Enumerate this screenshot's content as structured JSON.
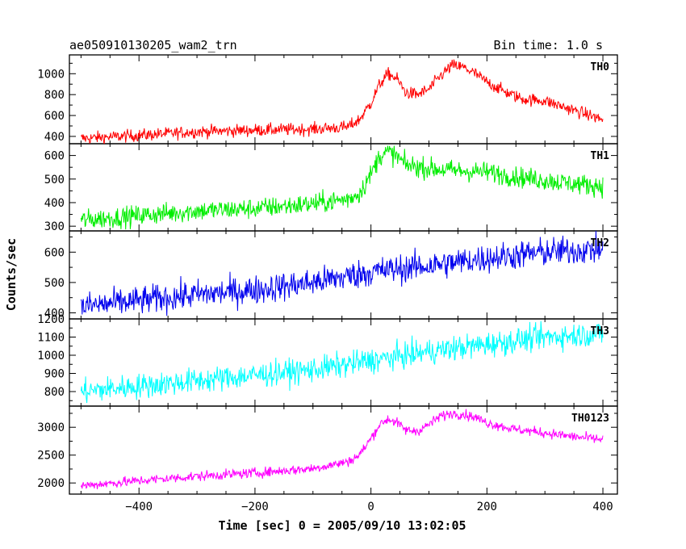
{
  "header": {
    "title": "ae050910130205_wam2_trn",
    "bin_time": "Bin time: 1.0 s"
  },
  "axes": {
    "ylabel": "Counts/sec",
    "xlabel": "Time [sec] 0 = 2005/09/10 13:02:05"
  },
  "chart_data": {
    "type": "line",
    "xlim": [
      -520,
      425
    ],
    "x_ticks": [
      -400,
      -200,
      0,
      200,
      400
    ],
    "x_tick_labels": [
      "−400",
      "−200",
      "0",
      "200",
      "400"
    ],
    "time_range": [
      -500,
      400
    ],
    "panels": [
      {
        "label": "TH0",
        "color": "#ff0000",
        "ylim": [
          330,
          1180
        ],
        "y_ticks": [
          400,
          600,
          800,
          1000
        ],
        "y_tick_labels": [
          "400",
          "600",
          "800",
          "1000"
        ],
        "noise": 30,
        "profile": [
          [
            -500,
            380
          ],
          [
            -400,
            410
          ],
          [
            -300,
            445
          ],
          [
            -200,
            460
          ],
          [
            -100,
            470
          ],
          [
            -40,
            490
          ],
          [
            -20,
            560
          ],
          [
            0,
            720
          ],
          [
            15,
            900
          ],
          [
            30,
            1000
          ],
          [
            45,
            950
          ],
          [
            60,
            820
          ],
          [
            80,
            800
          ],
          [
            100,
            850
          ],
          [
            120,
            980
          ],
          [
            140,
            1080
          ],
          [
            160,
            1060
          ],
          [
            180,
            1000
          ],
          [
            200,
            920
          ],
          [
            230,
            830
          ],
          [
            260,
            760
          ],
          [
            300,
            740
          ],
          [
            350,
            650
          ],
          [
            400,
            560
          ]
        ]
      },
      {
        "label": "TH1",
        "color": "#00ee00",
        "ylim": [
          280,
          650
        ],
        "y_ticks": [
          300,
          400,
          500,
          600
        ],
        "y_tick_labels": [
          "300",
          "400",
          "500",
          "600"
        ],
        "noise": 22,
        "profile": [
          [
            -500,
            325
          ],
          [
            -400,
            345
          ],
          [
            -300,
            365
          ],
          [
            -200,
            375
          ],
          [
            -100,
            395
          ],
          [
            -40,
            415
          ],
          [
            -20,
            440
          ],
          [
            0,
            520
          ],
          [
            15,
            600
          ],
          [
            30,
            615
          ],
          [
            45,
            595
          ],
          [
            60,
            560
          ],
          [
            100,
            545
          ],
          [
            150,
            535
          ],
          [
            200,
            530
          ],
          [
            250,
            510
          ],
          [
            300,
            495
          ],
          [
            350,
            480
          ],
          [
            400,
            470
          ]
        ]
      },
      {
        "label": "TH2",
        "color": "#0000ee",
        "ylim": [
          380,
          670
        ],
        "y_ticks": [
          400,
          500,
          600
        ],
        "y_tick_labels": [
          "400",
          "500",
          "600"
        ],
        "noise": 24,
        "profile": [
          [
            -500,
            420
          ],
          [
            -400,
            440
          ],
          [
            -300,
            460
          ],
          [
            -200,
            475
          ],
          [
            -100,
            500
          ],
          [
            0,
            535
          ],
          [
            100,
            555
          ],
          [
            200,
            580
          ],
          [
            300,
            600
          ],
          [
            400,
            610
          ]
        ]
      },
      {
        "label": "TH3",
        "color": "#00ffff",
        "ylim": [
          720,
          1200
        ],
        "y_ticks": [
          800,
          900,
          1000,
          1100,
          1200
        ],
        "y_tick_labels": [
          "800",
          "900",
          "1000",
          "1100",
          "1200"
        ],
        "noise": 35,
        "profile": [
          [
            -500,
            800
          ],
          [
            -400,
            830
          ],
          [
            -300,
            860
          ],
          [
            -200,
            890
          ],
          [
            -100,
            920
          ],
          [
            0,
            970
          ],
          [
            100,
            1020
          ],
          [
            200,
            1060
          ],
          [
            300,
            1100
          ],
          [
            400,
            1120
          ]
        ]
      },
      {
        "label": "TH0123",
        "color": "#ff00ff",
        "ylim": [
          1800,
          3380
        ],
        "y_ticks": [
          2000,
          2500,
          3000
        ],
        "y_tick_labels": [
          "2000",
          "2500",
          "3000"
        ],
        "noise": 45,
        "profile": [
          [
            -500,
            1950
          ],
          [
            -400,
            2040
          ],
          [
            -300,
            2120
          ],
          [
            -200,
            2180
          ],
          [
            -100,
            2260
          ],
          [
            -40,
            2380
          ],
          [
            -20,
            2500
          ],
          [
            0,
            2800
          ],
          [
            15,
            3050
          ],
          [
            30,
            3150
          ],
          [
            45,
            3080
          ],
          [
            60,
            2950
          ],
          [
            80,
            2930
          ],
          [
            100,
            3050
          ],
          [
            120,
            3200
          ],
          [
            140,
            3250
          ],
          [
            160,
            3230
          ],
          [
            180,
            3180
          ],
          [
            200,
            3080
          ],
          [
            250,
            2960
          ],
          [
            300,
            2900
          ],
          [
            350,
            2830
          ],
          [
            400,
            2780
          ]
        ]
      }
    ]
  }
}
